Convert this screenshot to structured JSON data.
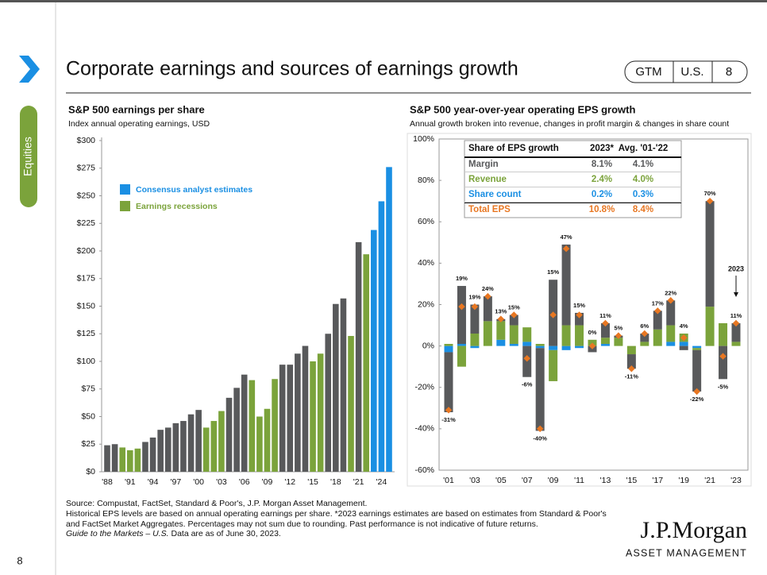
{
  "header": {
    "title": "Corporate earnings and sources of earnings growth",
    "badge": [
      "GTM",
      "U.S.",
      "8"
    ],
    "section": "Equities"
  },
  "chart_data": [
    {
      "type": "bar",
      "title": "S&P 500 earnings per share",
      "subtitle": "Index annual operating earnings, USD",
      "categories": [
        "'88",
        null,
        null,
        "'91",
        null,
        null,
        "'94",
        null,
        null,
        "'97",
        null,
        null,
        "'00",
        null,
        null,
        "'03",
        null,
        null,
        "'06",
        null,
        null,
        "'09",
        null,
        null,
        "'12",
        null,
        null,
        "'15",
        null,
        null,
        "'18",
        null,
        null,
        "'21",
        null,
        null,
        "'24",
        null
      ],
      "values": [
        24,
        25,
        22,
        19.5,
        21,
        27,
        31,
        38,
        40,
        44,
        46,
        52,
        56,
        40,
        46,
        55,
        67,
        76,
        88,
        83,
        50,
        57,
        84,
        97,
        97,
        107,
        114,
        100,
        107,
        125,
        152,
        157,
        123,
        208,
        197,
        219,
        245,
        276
      ],
      "colors": [
        "#58595b",
        "#58595b",
        "#7ba33b",
        "#7ba33b",
        "#7ba33b",
        "#58595b",
        "#58595b",
        "#58595b",
        "#58595b",
        "#58595b",
        "#58595b",
        "#58595b",
        "#58595b",
        "#7ba33b",
        "#7ba33b",
        "#7ba33b",
        "#58595b",
        "#58595b",
        "#58595b",
        "#7ba33b",
        "#7ba33b",
        "#7ba33b",
        "#7ba33b",
        "#58595b",
        "#58595b",
        "#58595b",
        "#58595b",
        "#7ba33b",
        "#7ba33b",
        "#58595b",
        "#58595b",
        "#58595b",
        "#7ba33b",
        "#58595b",
        "#7ba33b",
        "#1a8fe3",
        "#1a8fe3",
        "#1a8fe3"
      ],
      "legend": [
        {
          "name": "Consensus analyst estimates",
          "color": "#1a8fe3"
        },
        {
          "name": "Earnings recessions",
          "color": "#7ba33b"
        }
      ],
      "ylim": [
        0,
        300
      ],
      "yticks": [
        {
          "value": 0,
          "label": "$0"
        },
        {
          "value": 25,
          "label": "$25"
        },
        {
          "value": 50,
          "label": "$50"
        },
        {
          "value": 75,
          "label": "$75"
        },
        {
          "value": 100,
          "label": "$100"
        },
        {
          "value": 125,
          "label": "$125"
        },
        {
          "value": 150,
          "label": "$150"
        },
        {
          "value": 175,
          "label": "$175"
        },
        {
          "value": 200,
          "label": "$200"
        },
        {
          "value": 225,
          "label": "$225"
        },
        {
          "value": 250,
          "label": "$250"
        },
        {
          "value": 275,
          "label": "$275"
        },
        {
          "value": 300,
          "label": "$300"
        }
      ]
    },
    {
      "type": "stacked_bar",
      "title": "S&P 500 year-over-year operating EPS growth",
      "subtitle": "Annual growth broken into revenue, changes in profit margin & changes in share count",
      "categories": [
        "'01",
        null,
        "'03",
        null,
        "'05",
        null,
        "'07",
        null,
        "'09",
        null,
        "'11",
        null,
        "'13",
        null,
        "'15",
        null,
        "'17",
        null,
        "'19",
        null,
        "'21",
        null,
        "'23"
      ],
      "series": [
        {
          "name": "Margin",
          "color": "#58595b",
          "values": [
            -29,
            28,
            14,
            12,
            1,
            5,
            -15,
            -40,
            32,
            39,
            6,
            -3,
            7,
            1,
            -7,
            4,
            9,
            12,
            -2,
            -20,
            51,
            -16,
            9
          ]
        },
        {
          "name": "Revenue",
          "color": "#7ba33b",
          "values": [
            1,
            -10,
            6,
            12,
            9,
            9,
            7,
            1,
            -15,
            10,
            10,
            3,
            3,
            4,
            -4,
            2,
            8,
            8,
            4,
            -1,
            19,
            11,
            2
          ]
        },
        {
          "name": "Share count",
          "color": "#1a8fe3",
          "values": [
            -3,
            1,
            -1,
            0,
            3,
            1,
            2,
            -1,
            -2,
            -2,
            -1,
            0,
            1,
            0,
            0,
            0,
            0,
            2,
            2,
            -1,
            0,
            0,
            0
          ]
        }
      ],
      "totals": {
        "name": "Total EPS",
        "color": "#e87722",
        "values": [
          -31,
          19,
          19,
          24,
          13,
          15,
          -6,
          -40,
          15,
          47,
          15,
          0,
          11,
          5,
          -11,
          6,
          17,
          22,
          4,
          -22,
          70,
          -5,
          11
        ],
        "value_labels": [
          "-31%",
          "19%",
          "19%",
          "24%",
          "13%",
          "15%",
          "-6%",
          "-40%",
          "15%",
          "47%",
          "15%",
          "0%",
          "11%",
          "5%",
          "-11%",
          "6%",
          "17%",
          "22%",
          "4%",
          "-22%",
          "70%",
          "-5%",
          "11%"
        ]
      },
      "annotation": "2023",
      "ylim": [
        -60,
        100
      ],
      "yticks": [
        {
          "value": -60,
          "label": "-60%"
        },
        {
          "value": -40,
          "label": "-40%"
        },
        {
          "value": -20,
          "label": "-20%"
        },
        {
          "value": 0,
          "label": "0%"
        },
        {
          "value": 20,
          "label": "20%"
        },
        {
          "value": 40,
          "label": "40%"
        },
        {
          "value": 60,
          "label": "60%"
        },
        {
          "value": 80,
          "label": "80%"
        },
        {
          "value": 100,
          "label": "100%"
        }
      ],
      "table": {
        "header": [
          "Share of EPS growth",
          "2023*",
          "Avg. '01-'22"
        ],
        "rows": [
          [
            "8.1%",
            "4.1%"
          ],
          [
            "2.4%",
            "4.0%"
          ],
          [
            "0.2%",
            "0.3%"
          ],
          [
            "10.8%",
            "8.4%"
          ]
        ]
      }
    }
  ],
  "footer": {
    "lines": [
      "Source: Compustat, FactSet, Standard & Poor's, J.P. Morgan Asset Management.",
      "Historical EPS levels are based on annual operating earnings per share. *2023 earnings estimates are based on estimates from Standard & Poor's",
      "and FactSet Market Aggregates. Percentages may not sum due to rounding. Past performance is not indicative of future returns."
    ],
    "guide": "Guide to the Markets – U.S.",
    "asof": " Data are as of June 30, 2023.",
    "logo": "J.P.Morgan",
    "logo_sub": "ASSET MANAGEMENT",
    "page": "8"
  }
}
